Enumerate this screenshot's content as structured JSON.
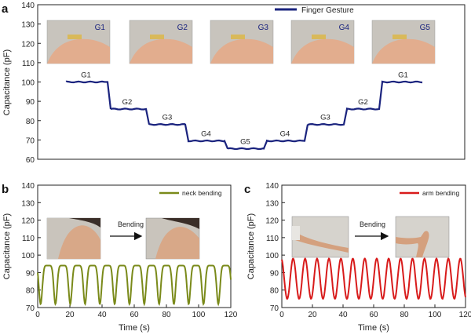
{
  "panels": {
    "a": "a",
    "b": "b",
    "c": "c"
  },
  "chart_data": [
    {
      "id": "a",
      "type": "line",
      "title": "",
      "xlabel": "",
      "ylabel": "Capacitance (pF)",
      "ylim": [
        60,
        140
      ],
      "yticks": [
        60,
        70,
        80,
        90,
        100,
        110,
        120,
        130,
        140
      ],
      "legend": {
        "label": "Finger Gesture",
        "placement": "top-right"
      },
      "color": "#1a237e",
      "x": [
        0,
        1,
        2,
        3,
        4,
        5,
        6,
        7,
        8,
        9
      ],
      "series": [
        {
          "values": [
            100,
            86,
            78,
            69.5,
            65.5,
            69.5,
            78,
            86,
            100,
            100
          ]
        }
      ],
      "annotations": [
        "G1",
        "G2",
        "G3",
        "G4",
        "G5",
        "G4",
        "G3",
        "G2",
        "G1"
      ],
      "photo_labels": [
        "G1",
        "G2",
        "G3",
        "G4",
        "G5"
      ]
    },
    {
      "id": "b",
      "type": "line",
      "title": "",
      "xlabel": "Time (s)",
      "ylabel": "Capacitance (pF)",
      "xlim": [
        0,
        120
      ],
      "ylim": [
        70,
        140
      ],
      "xticks": [
        0,
        20,
        40,
        60,
        80,
        100,
        120
      ],
      "yticks": [
        70,
        80,
        90,
        100,
        110,
        120,
        130,
        140
      ],
      "legend": {
        "label": "neck bending",
        "placement": "top-right"
      },
      "color": "#7a8a1a",
      "series": [
        {
          "name": "neck bending",
          "period_s": 9.2,
          "high": 94,
          "low": 72
        }
      ],
      "inset_label": "Bending"
    },
    {
      "id": "c",
      "type": "line",
      "title": "",
      "xlabel": "Time (s)",
      "ylabel": "Capacitance (pF)",
      "xlim": [
        0,
        120
      ],
      "ylim": [
        70,
        140
      ],
      "xticks": [
        0,
        20,
        40,
        60,
        80,
        100,
        120
      ],
      "yticks": [
        70,
        80,
        90,
        100,
        110,
        120,
        130,
        140
      ],
      "legend": {
        "label": "arm bending",
        "placement": "top-right"
      },
      "color": "#d81b1b",
      "series": [
        {
          "name": "arm bending",
          "period_s": 7.8,
          "high": 98,
          "low": 75
        }
      ],
      "inset_label": "Bending"
    }
  ]
}
